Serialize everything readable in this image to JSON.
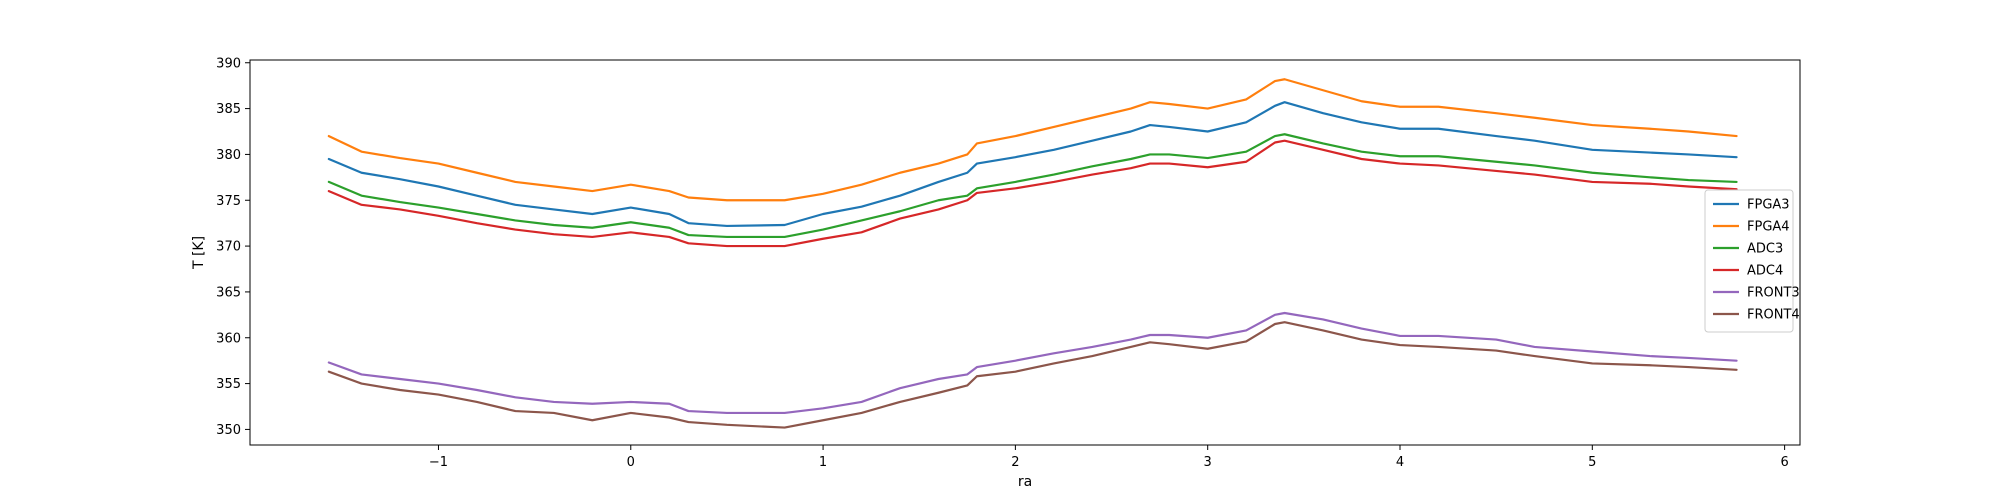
{
  "chart_data": {
    "type": "line",
    "title": "",
    "xlabel": "ra",
    "ylabel": "T [K]",
    "xlim": [
      -1.98,
      6.08
    ],
    "ylim": [
      348.3,
      390.3
    ],
    "xticks": [
      -1,
      0,
      1,
      2,
      3,
      4,
      5,
      6
    ],
    "xtick_labels": [
      "−1",
      "0",
      "1",
      "2",
      "3",
      "4",
      "5",
      "6"
    ],
    "yticks": [
      350,
      355,
      360,
      365,
      370,
      375,
      380,
      385,
      390
    ],
    "grid": false,
    "legend_position": "center-right",
    "x": [
      -1.57,
      -1.4,
      -1.2,
      -1.0,
      -0.8,
      -0.6,
      -0.4,
      -0.2,
      0.0,
      0.2,
      0.3,
      0.5,
      0.8,
      1.0,
      1.2,
      1.4,
      1.6,
      1.75,
      1.8,
      2.0,
      2.2,
      2.4,
      2.6,
      2.7,
      2.8,
      3.0,
      3.2,
      3.35,
      3.4,
      3.6,
      3.8,
      4.0,
      4.2,
      4.5,
      4.7,
      5.0,
      5.3,
      5.5,
      5.75
    ],
    "series": [
      {
        "name": "FPGA3",
        "color": "#1f77b4",
        "values": [
          379.5,
          378.0,
          377.3,
          376.5,
          375.5,
          374.5,
          374.0,
          373.5,
          374.2,
          373.5,
          372.5,
          372.2,
          372.3,
          373.5,
          374.3,
          375.5,
          377.0,
          378.0,
          379.0,
          379.7,
          380.5,
          381.5,
          382.5,
          383.2,
          383.0,
          382.5,
          383.5,
          385.3,
          385.7,
          384.5,
          383.5,
          382.8,
          382.8,
          382.0,
          381.5,
          380.5,
          380.2,
          380.0,
          379.7
        ]
      },
      {
        "name": "FPGA4",
        "color": "#ff7f0e",
        "values": [
          382.0,
          380.3,
          379.6,
          379.0,
          378.0,
          377.0,
          376.5,
          376.0,
          376.7,
          376.0,
          375.3,
          375.0,
          375.0,
          375.7,
          376.7,
          378.0,
          379.0,
          380.0,
          381.2,
          382.0,
          383.0,
          384.0,
          385.0,
          385.7,
          385.5,
          385.0,
          386.0,
          388.0,
          388.2,
          387.0,
          385.8,
          385.2,
          385.2,
          384.5,
          384.0,
          383.2,
          382.8,
          382.5,
          382.0
        ]
      },
      {
        "name": "ADC3",
        "color": "#2ca02c",
        "values": [
          377.0,
          375.5,
          374.8,
          374.2,
          373.5,
          372.8,
          372.3,
          372.0,
          372.6,
          372.0,
          371.2,
          371.0,
          371.0,
          371.8,
          372.8,
          373.8,
          375.0,
          375.5,
          376.3,
          377.0,
          377.8,
          378.7,
          379.5,
          380.0,
          380.0,
          379.6,
          380.3,
          382.0,
          382.2,
          381.2,
          380.3,
          379.8,
          379.8,
          379.2,
          378.8,
          378.0,
          377.5,
          377.2,
          377.0
        ]
      },
      {
        "name": "ADC4",
        "color": "#d62728",
        "values": [
          376.0,
          374.5,
          374.0,
          373.3,
          372.5,
          371.8,
          371.3,
          371.0,
          371.5,
          371.0,
          370.3,
          370.0,
          370.0,
          370.8,
          371.5,
          373.0,
          374.0,
          375.0,
          375.8,
          376.3,
          377.0,
          377.8,
          378.5,
          379.0,
          379.0,
          378.6,
          379.2,
          381.3,
          381.5,
          380.5,
          379.5,
          379.0,
          378.8,
          378.2,
          377.8,
          377.0,
          376.8,
          376.5,
          376.2
        ]
      },
      {
        "name": "FRONT3",
        "color": "#9467bd",
        "values": [
          357.3,
          356.0,
          355.5,
          355.0,
          354.3,
          353.5,
          353.0,
          352.8,
          353.0,
          352.8,
          352.0,
          351.8,
          351.8,
          352.3,
          353.0,
          354.5,
          355.5,
          356.0,
          356.8,
          357.5,
          358.3,
          359.0,
          359.8,
          360.3,
          360.3,
          360.0,
          360.8,
          362.5,
          362.7,
          362.0,
          361.0,
          360.2,
          360.2,
          359.8,
          359.0,
          358.5,
          358.0,
          357.8,
          357.5
        ]
      },
      {
        "name": "FRONT4",
        "color": "#8c564b",
        "values": [
          356.3,
          355.0,
          354.3,
          353.8,
          353.0,
          352.0,
          351.8,
          351.0,
          351.8,
          351.3,
          350.8,
          350.5,
          350.2,
          351.0,
          351.8,
          353.0,
          354.0,
          354.8,
          355.8,
          356.3,
          357.2,
          358.0,
          359.0,
          359.5,
          359.3,
          358.8,
          359.6,
          361.5,
          361.7,
          360.8,
          359.8,
          359.2,
          359.0,
          358.6,
          358.0,
          357.2,
          357.0,
          356.8,
          356.5
        ]
      }
    ]
  }
}
